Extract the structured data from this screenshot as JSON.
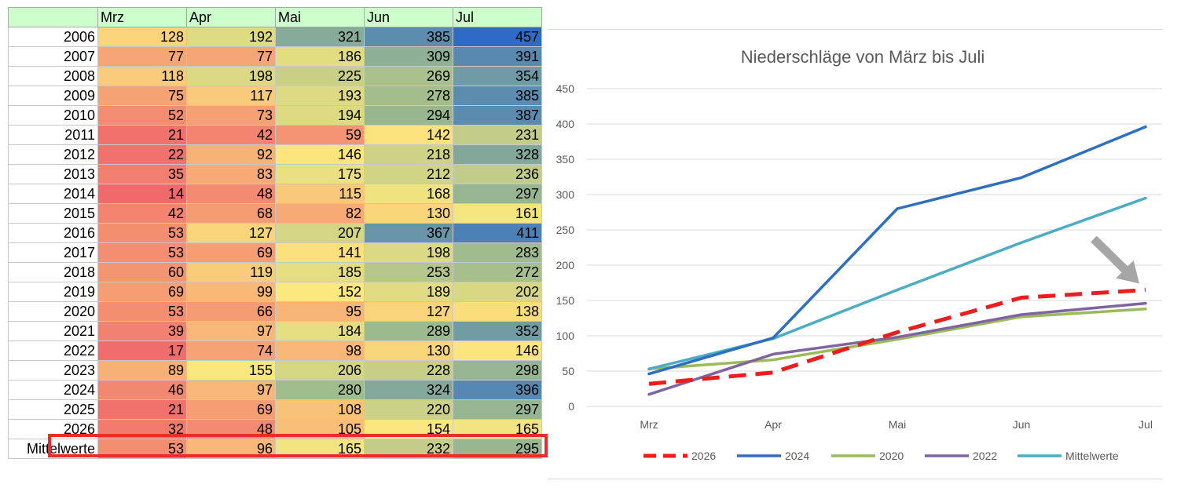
{
  "table": {
    "corner": "",
    "months": [
      "Mrz",
      "Apr",
      "Mai",
      "Jun",
      "Jul"
    ],
    "rows": [
      {
        "year": "2006",
        "values": [
          128,
          192,
          321,
          385,
          457
        ]
      },
      {
        "year": "2007",
        "values": [
          77,
          77,
          186,
          309,
          391
        ]
      },
      {
        "year": "2008",
        "values": [
          118,
          198,
          225,
          269,
          354
        ]
      },
      {
        "year": "2009",
        "values": [
          75,
          117,
          193,
          278,
          385
        ]
      },
      {
        "year": "2010",
        "values": [
          52,
          73,
          194,
          294,
          387
        ]
      },
      {
        "year": "2011",
        "values": [
          21,
          42,
          59,
          142,
          231
        ]
      },
      {
        "year": "2012",
        "values": [
          22,
          92,
          146,
          218,
          328
        ]
      },
      {
        "year": "2013",
        "values": [
          35,
          83,
          175,
          212,
          236
        ]
      },
      {
        "year": "2014",
        "values": [
          14,
          48,
          115,
          168,
          297
        ]
      },
      {
        "year": "2015",
        "values": [
          42,
          68,
          82,
          130,
          161
        ]
      },
      {
        "year": "2016",
        "values": [
          53,
          127,
          207,
          367,
          411
        ]
      },
      {
        "year": "2017",
        "values": [
          53,
          69,
          141,
          198,
          283
        ]
      },
      {
        "year": "2018",
        "values": [
          60,
          119,
          185,
          253,
          272
        ]
      },
      {
        "year": "2019",
        "values": [
          69,
          99,
          152,
          189,
          202
        ]
      },
      {
        "year": "2020",
        "values": [
          53,
          66,
          95,
          127,
          138
        ]
      },
      {
        "year": "2021",
        "values": [
          39,
          97,
          184,
          289,
          352
        ]
      },
      {
        "year": "2022",
        "values": [
          17,
          74,
          98,
          130,
          146
        ]
      },
      {
        "year": "2023",
        "values": [
          89,
          155,
          206,
          228,
          298
        ]
      },
      {
        "year": "2024",
        "values": [
          46,
          97,
          280,
          324,
          396
        ]
      },
      {
        "year": "2025",
        "values": [
          21,
          69,
          108,
          220,
          297
        ]
      },
      {
        "year": "2026",
        "values": [
          32,
          48,
          105,
          154,
          165
        ],
        "highlighted": true
      },
      {
        "year": "Mittelwerte",
        "values": [
          53,
          96,
          165,
          232,
          295
        ]
      }
    ],
    "color_scale": {
      "low": "#f06a6c",
      "mid": "#fce97e",
      "high": "#2d6bc6",
      "min_value": 14,
      "mid_value": 150,
      "max_value": 457
    },
    "highlight_color": "#ee2b2b"
  },
  "chart_data": {
    "type": "line",
    "title": "Niederschläge von März bis Juli",
    "categories": [
      "Mrz",
      "Apr",
      "Mai",
      "Jun",
      "Jul"
    ],
    "ylim": [
      0,
      450
    ],
    "yticks": [
      0,
      50,
      100,
      150,
      200,
      250,
      300,
      350,
      400,
      450
    ],
    "grid": true,
    "legend_position": "bottom",
    "series": [
      {
        "name": "2026",
        "values": [
          32,
          48,
          105,
          154,
          165
        ],
        "color": "#ee1c1c",
        "dashed": true
      },
      {
        "name": "2024",
        "values": [
          46,
          97,
          280,
          324,
          396
        ],
        "color": "#2e6fc3",
        "dashed": false
      },
      {
        "name": "2020",
        "values": [
          53,
          66,
          95,
          127,
          138
        ],
        "color": "#9bbb59",
        "dashed": false
      },
      {
        "name": "2022",
        "values": [
          17,
          74,
          98,
          130,
          146
        ],
        "color": "#8064a2",
        "dashed": false
      },
      {
        "name": "Mittelwerte",
        "values": [
          53,
          96,
          165,
          232,
          295
        ],
        "color": "#4bacc6",
        "dashed": false
      }
    ],
    "annotation": {
      "type": "arrow",
      "target_series": "2026",
      "target_category": "Jul",
      "color": "#a6a6a6"
    }
  }
}
